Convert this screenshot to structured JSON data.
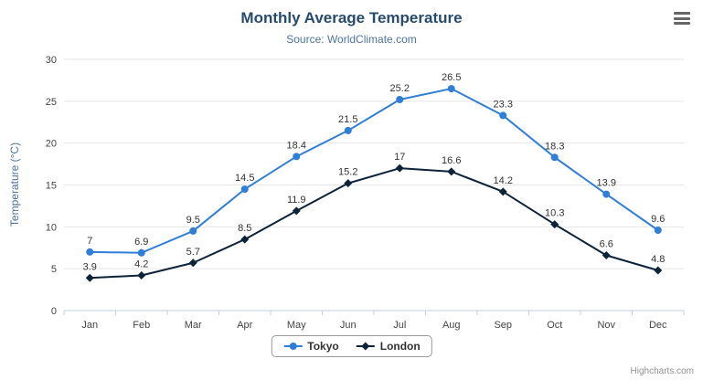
{
  "chart_data": {
    "type": "line",
    "title": "Monthly Average Temperature",
    "subtitle": "Source: WorldClimate.com",
    "categories": [
      "Jan",
      "Feb",
      "Mar",
      "Apr",
      "May",
      "Jun",
      "Jul",
      "Aug",
      "Sep",
      "Oct",
      "Nov",
      "Dec"
    ],
    "series": [
      {
        "name": "Tokyo",
        "color": "#2f7ed8",
        "marker": "circle",
        "values": [
          7,
          6.9,
          9.5,
          14.5,
          18.4,
          21.5,
          25.2,
          26.5,
          23.3,
          18.3,
          13.9,
          9.6
        ]
      },
      {
        "name": "London",
        "color": "#0d233a",
        "marker": "diamond",
        "values": [
          3.9,
          4.2,
          5.7,
          8.5,
          11.9,
          15.2,
          17,
          16.6,
          14.2,
          10.3,
          6.6,
          4.8
        ]
      }
    ],
    "xlabel": "",
    "ylabel": "Temperature (°C)",
    "ylim": [
      0,
      30
    ],
    "yticks": [
      0,
      5,
      10,
      15,
      20,
      25,
      30
    ],
    "grid": true,
    "legend_position": "bottom",
    "credits": "Highcharts.com"
  },
  "colors": {
    "title": "#274b6d",
    "subtitle": "#4d759e",
    "axis_title": "#4d759e",
    "axis_label": "#444444",
    "gridline": "#e6e6e6",
    "axis_line": "#c0d0e0",
    "data_label": "#333333",
    "legend_border": "#999999",
    "credits": "#909090"
  }
}
